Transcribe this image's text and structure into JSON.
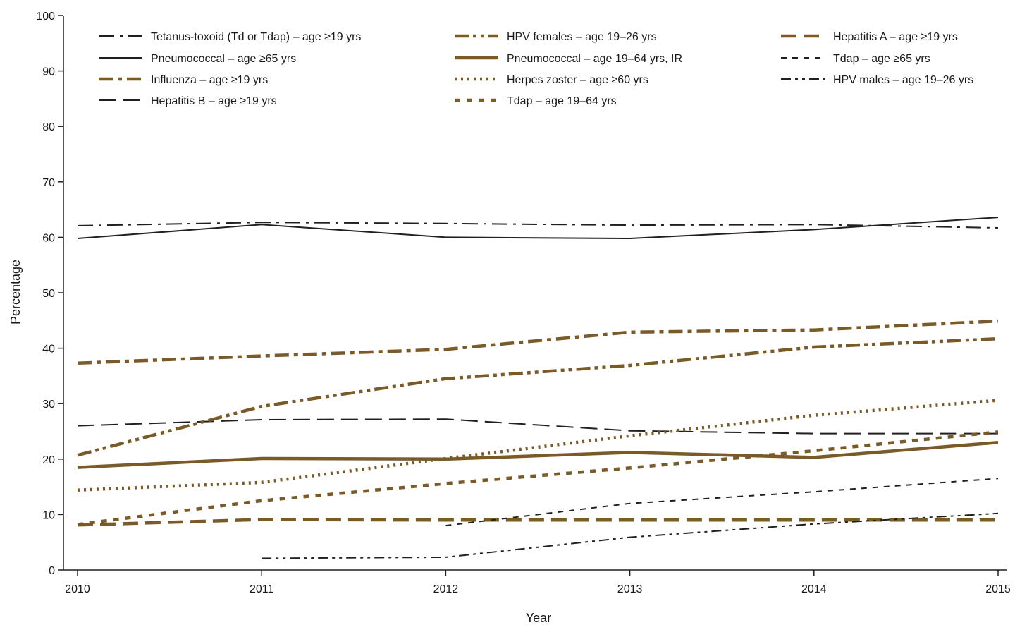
{
  "chart_data": {
    "type": "line",
    "title": "",
    "xlabel": "Year",
    "ylabel": "Percentage",
    "x": [
      2010,
      2011,
      2012,
      2013,
      2014,
      2015
    ],
    "xlim": [
      2010,
      2015
    ],
    "ylim": [
      0,
      100
    ],
    "yticks": [
      0,
      10,
      20,
      30,
      40,
      50,
      60,
      70,
      80,
      90,
      100
    ],
    "grid": false,
    "legend_position": "top",
    "colors": {
      "black": "#231f20",
      "brown": "#7a5a27"
    },
    "series": [
      {
        "name": "Tetanus-toxoid (Td or Tdap) – age ≥19 yrs",
        "values": [
          62.1,
          62.7,
          62.5,
          62.2,
          62.3,
          61.7
        ],
        "color": "black",
        "style": "dashdot_long"
      },
      {
        "name": "Pneumococcal – age ≥65 yrs",
        "values": [
          59.8,
          62.3,
          60.0,
          59.8,
          61.4,
          63.6
        ],
        "color": "black",
        "style": "solid"
      },
      {
        "name": "Influenza – age ≥19 yrs",
        "values": [
          37.3,
          38.6,
          39.8,
          42.9,
          43.3,
          44.9
        ],
        "color": "brown",
        "style": "dashdot_thick"
      },
      {
        "name": "Hepatitis B – age ≥19 yrs",
        "values": [
          26.0,
          27.1,
          27.2,
          25.1,
          24.6,
          24.6
        ],
        "color": "black",
        "style": "longdash"
      },
      {
        "name": "HPV females – age 19–26 yrs",
        "values": [
          20.7,
          29.5,
          34.5,
          36.9,
          40.2,
          41.7
        ],
        "color": "brown",
        "style": "dashdotdot_thick"
      },
      {
        "name": "Pneumococcal – age 19–64 yrs, IR",
        "values": [
          18.5,
          20.1,
          20.0,
          21.2,
          20.3,
          23.0
        ],
        "color": "brown",
        "style": "solid_thick"
      },
      {
        "name": "Herpes zoster – age ≥60 yrs",
        "values": [
          14.4,
          15.8,
          20.1,
          24.2,
          27.9,
          30.6
        ],
        "color": "brown",
        "style": "dotted"
      },
      {
        "name": "Tdap – age 19–64 yrs",
        "values": [
          8.2,
          12.5,
          15.6,
          18.4,
          21.5,
          24.9
        ],
        "color": "brown",
        "style": "short_dash_thick"
      },
      {
        "name": "Hepatitis A – age ≥19 yrs",
        "values": [
          8.1,
          9.1,
          9.0,
          9.0,
          9.0,
          9.0
        ],
        "color": "brown",
        "style": "dash_thick"
      },
      {
        "name": "Tdap – age ≥65 yrs",
        "values": [
          null,
          null,
          8.0,
          12.0,
          14.1,
          16.5
        ],
        "color": "black",
        "style": "short_dash"
      },
      {
        "name": "HPV males – age 19–26 yrs",
        "values": [
          null,
          2.1,
          2.3,
          5.9,
          8.3,
          10.2
        ],
        "color": "black",
        "style": "dashdotdot"
      }
    ],
    "legend_order": [
      "Tetanus-toxoid (Td or Tdap) – age ≥19 yrs",
      "HPV females – age 19–26 yrs",
      "Hepatitis A – age ≥19 yrs",
      "Pneumococcal – age ≥65 yrs",
      "Pneumococcal – age 19–64 yrs, IR",
      "Tdap – age ≥65 yrs",
      "Influenza – age ≥19 yrs",
      "Herpes zoster – age ≥60 yrs",
      "HPV males – age 19–26 yrs",
      "Hepatitis B – age ≥19 yrs",
      "Tdap – age 19–64 yrs"
    ]
  }
}
